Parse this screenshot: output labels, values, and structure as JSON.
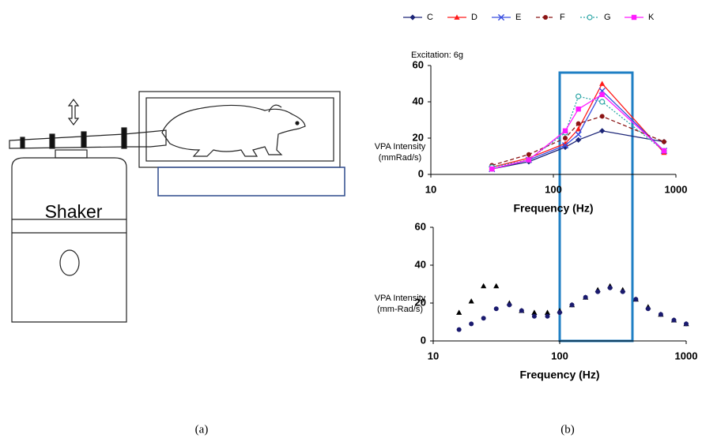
{
  "diagram": {
    "label": "Shaker"
  },
  "captions": [
    "(a)",
    "(b)"
  ],
  "chart_data": [
    {
      "type": "line",
      "annotations": [
        "Excitation: 6g"
      ],
      "x_label": "Frequency (Hz)",
      "y_label": [
        "VPA Intensity",
        "(mmRad/s)"
      ],
      "log_x": true,
      "xlim": [
        10,
        1000
      ],
      "xticks": [
        10,
        100,
        1000
      ],
      "ylim": [
        0,
        60
      ],
      "yticks": [
        0,
        20,
        40,
        60
      ],
      "grid": false,
      "legend": "top",
      "x": [
        31.5,
        63,
        125,
        160,
        250,
        800
      ],
      "series": [
        {
          "name": "C",
          "color": "#1c2577",
          "marker": "diamond",
          "dash": "solid",
          "values": [
            3,
            7,
            15,
            19,
            24,
            18
          ]
        },
        {
          "name": "D",
          "color": "#ff1a1a",
          "marker": "triangle",
          "dash": "solid",
          "values": [
            4,
            9,
            17,
            25,
            50,
            12
          ]
        },
        {
          "name": "E",
          "color": "#3a4fe0",
          "marker": "x",
          "dash": "solid",
          "values": [
            3,
            8,
            16,
            22,
            46,
            13
          ]
        },
        {
          "name": "F",
          "color": "#8b1414",
          "marker": "circle",
          "dash": "dashed",
          "values": [
            5,
            11,
            20,
            28,
            32,
            18
          ]
        },
        {
          "name": "G",
          "color": "#2ea6a6",
          "marker": "circle-open",
          "dash": "dotted",
          "values": [
            4,
            8,
            23,
            43,
            40,
            13
          ]
        },
        {
          "name": "K",
          "color": "#ff1aff",
          "marker": "square",
          "dash": "solid",
          "values": [
            3,
            8,
            24,
            36,
            44,
            13
          ]
        }
      ]
    },
    {
      "type": "scatter",
      "x_label": "Frequency (Hz)",
      "y_label": [
        "VPA Intensity",
        "(mm-Rad/s)"
      ],
      "log_x": true,
      "xlim": [
        10,
        1000
      ],
      "xticks": [
        10,
        100,
        1000
      ],
      "ylim": [
        0,
        60
      ],
      "yticks": [
        0,
        20,
        40,
        60
      ],
      "grid": false,
      "x": [
        16,
        20,
        25,
        31.5,
        40,
        50,
        63,
        80,
        100,
        125,
        160,
        200,
        250,
        315,
        400,
        500,
        630,
        800,
        1000
      ],
      "series": [
        {
          "color": "#000000",
          "marker": "triangle",
          "values": [
            15,
            21,
            29,
            29,
            20,
            16,
            15,
            15,
            16,
            19,
            23,
            27,
            29,
            27,
            22,
            18,
            14,
            11,
            9
          ]
        },
        {
          "color": "#1a1a6e",
          "marker": "circle",
          "values": [
            6,
            9,
            12,
            17,
            19,
            16,
            13,
            13,
            15,
            19,
            23,
            26,
            28,
            26,
            22,
            17,
            14,
            11,
            9
          ]
        }
      ]
    }
  ]
}
